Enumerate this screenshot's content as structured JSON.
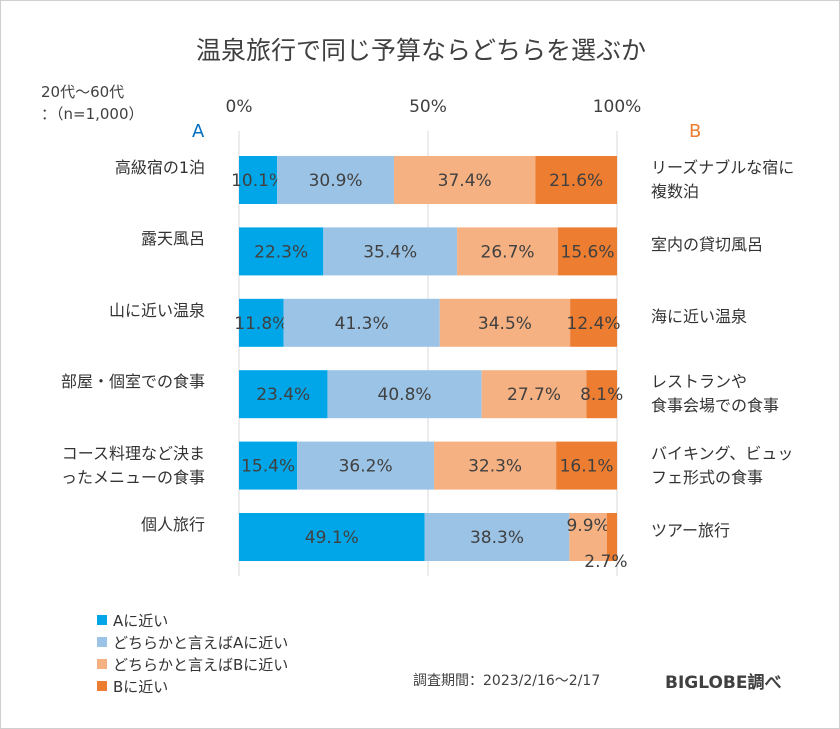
{
  "chart_data": {
    "type": "bar",
    "orientation": "horizontal-stacked-100",
    "title": "温泉旅行で同じ予算ならどちらを選ぶか",
    "note": "20代～60代\n：（n=1,000）",
    "label_a": "A",
    "label_b": "B",
    "xlim": [
      0,
      100
    ],
    "x_ticks": [
      "0%",
      "50%",
      "100%"
    ],
    "categories": [
      "高級宿の1泊",
      "露天風呂",
      "山に近い温泉",
      "部屋・個室での食事",
      "コース料理など決まったメニューの食事",
      "個人旅行"
    ],
    "category_labels_a": [
      "高級宿の1泊",
      "露天風呂",
      "山に近い温泉",
      "部屋・個室での食事",
      "コース料理など決ま\nったメニューの食事",
      "個人旅行"
    ],
    "category_labels_b": [
      "リーズナブルな宿に\n複数泊",
      "室内の貸切風呂",
      "海に近い温泉",
      "レストランや\n食事会場での食事",
      "バイキング、ビュッ\nフェ形式の食事",
      "ツアー旅行"
    ],
    "series": [
      {
        "name": "Aに近い",
        "color": "#00a6e8",
        "values": [
          10.1,
          22.3,
          11.8,
          23.4,
          15.4,
          49.1
        ],
        "labels": [
          "10.1%",
          "22.3%",
          "11.8%",
          "23.4%",
          "15.4%",
          "49.1%"
        ]
      },
      {
        "name": "どちらかと言えばAに近い",
        "color": "#9bc3e6",
        "values": [
          30.9,
          35.4,
          41.3,
          40.8,
          36.2,
          38.3
        ],
        "labels": [
          "30.9%",
          "35.4%",
          "41.3%",
          "40.8%",
          "36.2%",
          "38.3%"
        ]
      },
      {
        "name": "どちらかと言えばBに近い",
        "color": "#f5b182",
        "values": [
          37.4,
          26.7,
          34.5,
          27.7,
          32.3,
          9.9
        ],
        "labels": [
          "37.4%",
          "26.7%",
          "34.5%",
          "27.7%",
          "32.3%",
          "9.9%"
        ]
      },
      {
        "name": "Bに近い",
        "color": "#ed7d31",
        "values": [
          21.6,
          15.6,
          12.4,
          8.1,
          16.1,
          2.7
        ],
        "labels": [
          "21.6%",
          "15.6%",
          "12.4%",
          "8.1%",
          "16.1%",
          "2.7%"
        ]
      }
    ],
    "legend_position": "bottom-left",
    "grid": true
  },
  "footer": {
    "survey_period": "調査期間：2023/2/16～2/17",
    "brand": "BIGLOBE調べ"
  },
  "colors": {
    "label_a": "#0070c0",
    "label_b": "#ed7d31",
    "axis": "#d9d9d9"
  }
}
